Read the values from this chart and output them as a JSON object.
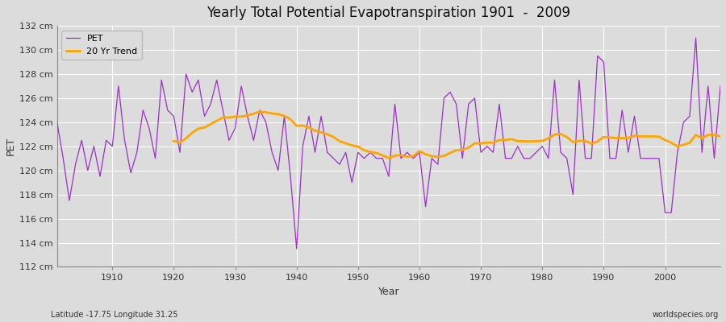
{
  "title": "Yearly Total Potential Evapotranspiration 1901  -  2009",
  "xlabel": "Year",
  "ylabel": "PET",
  "subtitle": "Latitude -17.75 Longitude 31.25",
  "watermark": "worldspecies.org",
  "pet_color": "#9B30C8",
  "trend_color": "#FFA500",
  "background_color": "#DCDCDC",
  "plot_bg_color": "#DCDCDC",
  "grid_color": "#FFFFFF",
  "ylim": [
    112,
    132
  ],
  "yticks": [
    112,
    114,
    116,
    118,
    120,
    122,
    124,
    126,
    128,
    130,
    132
  ],
  "pet_values": [
    124.0,
    121.0,
    117.5,
    120.5,
    122.5,
    120.0,
    122.0,
    119.5,
    122.5,
    122.0,
    127.0,
    122.5,
    119.8,
    121.5,
    125.0,
    123.5,
    121.0,
    127.5,
    125.0,
    124.5,
    121.5,
    128.0,
    126.5,
    127.5,
    124.5,
    125.5,
    127.5,
    125.0,
    122.5,
    123.5,
    127.0,
    124.5,
    122.5,
    125.0,
    124.0,
    121.5,
    120.0,
    124.5,
    119.5,
    113.5,
    122.0,
    124.5,
    121.5,
    124.5,
    121.5,
    121.0,
    120.5,
    121.5,
    119.0,
    121.5,
    121.0,
    121.5,
    121.0,
    121.0,
    119.5,
    125.5,
    121.0,
    121.5,
    121.0,
    121.5,
    117.0,
    121.0,
    120.5,
    126.0,
    126.5,
    125.5,
    121.0,
    125.5,
    126.0,
    121.5,
    122.0,
    121.5,
    125.5,
    121.0,
    121.0,
    122.0,
    121.0,
    121.0,
    121.5,
    122.0,
    121.0,
    127.5,
    121.5,
    121.0,
    118.0,
    127.5,
    121.0,
    121.0,
    129.5,
    129.0,
    121.0,
    121.0,
    125.0,
    121.5,
    124.5,
    121.0,
    121.0,
    121.0,
    121.0,
    116.5,
    116.5,
    121.5,
    124.0,
    124.5,
    131.0,
    121.5,
    127.0,
    121.0,
    127.0
  ]
}
